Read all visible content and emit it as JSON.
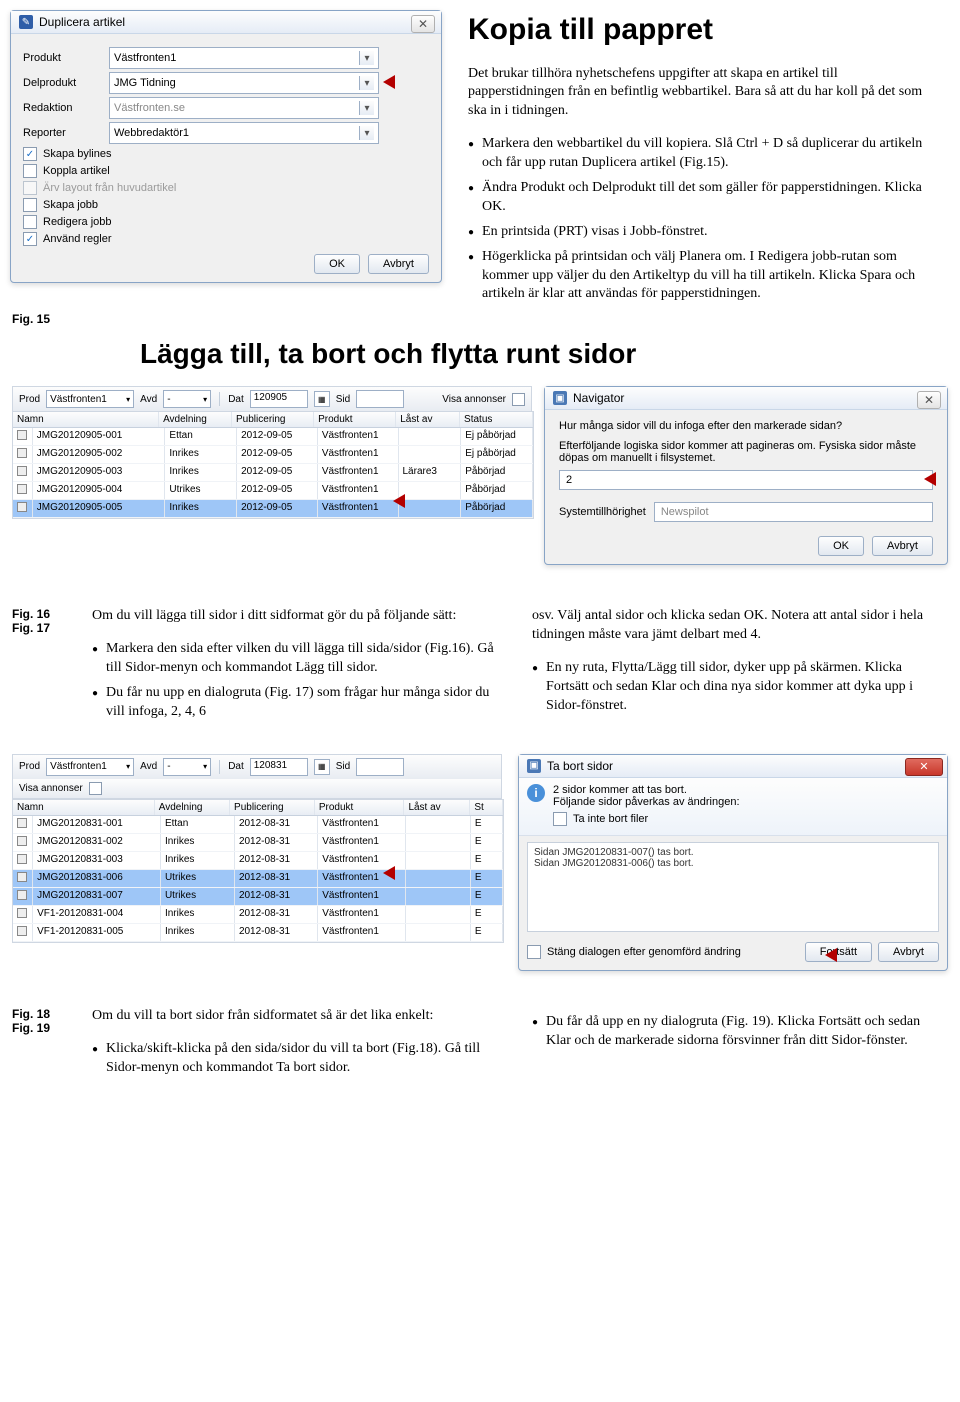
{
  "colors": {
    "highlight": "#9ec6f7",
    "marker": "#b30000"
  },
  "section1": {
    "dialog": {
      "title": "Duplicera artikel",
      "fields": {
        "produkt_label": "Produkt",
        "produkt_value": "Västfronten1",
        "delprodukt_label": "Delprodukt",
        "delprodukt_value": "JMG Tidning",
        "redaktion_label": "Redaktion",
        "redaktion_value": "Västfronten.se",
        "reporter_label": "Reporter",
        "reporter_value": "Webbredaktör1"
      },
      "checks": [
        {
          "label": "Skapa bylines",
          "checked": true,
          "enabled": true
        },
        {
          "label": "Koppla artikel",
          "checked": false,
          "enabled": true
        },
        {
          "label": "Ärv layout från huvudartikel",
          "checked": false,
          "enabled": false
        },
        {
          "label": "Skapa jobb",
          "checked": false,
          "enabled": true
        },
        {
          "label": "Redigera jobb",
          "checked": false,
          "enabled": true
        },
        {
          "label": "Använd regler",
          "checked": true,
          "enabled": true
        }
      ],
      "ok": "OK",
      "cancel": "Avbryt"
    },
    "article": {
      "title": "Kopia till pappret",
      "intro": "Det brukar tillhöra nyhetschefens uppgifter att skapa en artikel till papperstidningen från en befintlig webbartikel. Bara så att du har koll på det som ska in i tidningen.",
      "b1": "Markera den webbartikel du vill kopiera. Slå Ctrl + D så duplicerar du artikeln och får upp rutan Duplicera artikel (Fig.15).",
      "b2": "Ändra Produkt och Delprodukt till det som gäller för papperstidningen. Klicka OK.",
      "b3": "En printsida (PRT) visas i Jobb-fönstret.",
      "b4": "Högerklicka på printsidan och välj Planera om. I Redigera jobb-rutan som kommer upp väljer du den Artikeltyp du vill ha till artikeln. Klicka Spara och artikeln är klar att användas för papperstidningen."
    },
    "figlabel": "Fig. 15"
  },
  "section2": {
    "heading": "Lägga till, ta bort och flytta runt sidor",
    "topbar": {
      "prod_label": "Prod",
      "prod_value": "Västfronten1",
      "avd_label": "Avd",
      "dat_label": "Dat",
      "dat_value": "120905",
      "sid_label": "Sid",
      "visa_label": "Visa annonser"
    },
    "table": {
      "cols": [
        "Namn",
        "Avdelning",
        "Publicering",
        "Produkt",
        "Låst av",
        "Status"
      ],
      "widths": [
        150,
        70,
        80,
        80,
        60,
        70
      ],
      "rows": [
        [
          "JMG20120905-001",
          "Ettan",
          "2012-09-05",
          "Västfronten1",
          "",
          "Ej påbörjad"
        ],
        [
          "JMG20120905-002",
          "Inrikes",
          "2012-09-05",
          "Västfronten1",
          "",
          "Ej påbörjad"
        ],
        [
          "JMG20120905-003",
          "Inrikes",
          "2012-09-05",
          "Västfronten1",
          "Lärare3",
          "Påbörjad"
        ],
        [
          "JMG20120905-004",
          "Utrikes",
          "2012-09-05",
          "Västfronten1",
          "",
          "Påbörjad"
        ],
        [
          "JMG20120905-005",
          "Inrikes",
          "2012-09-05",
          "Västfronten1",
          "",
          "Påbörjad"
        ]
      ],
      "selected_row": 4
    },
    "navdialog": {
      "title": "Navigator",
      "q": "Hur många sidor vill du infoga efter den markerade sidan?",
      "note": "Efterföljande logiska sidor kommer att pagineras om. Fysiska sidor måste döpas om manuellt i filsystemet.",
      "value": "2",
      "sys_label": "Systemtillhörighet",
      "sys_value": "Newspilot",
      "ok": "OK",
      "cancel": "Avbryt"
    },
    "fig16": "Fig. 16",
    "fig17": "Fig. 17",
    "text_l_intro": "Om du vill lägga till sidor i ditt sidformat gör du på följande sätt:",
    "text_l_b1": "Markera den sida efter vilken du vill lägga till sida/sidor (Fig.16). Gå till Sidor-menyn och kommandot Lägg till sidor.",
    "text_l_b2": "Du får nu upp en dialogruta (Fig. 17) som frågar hur många sidor du vill infoga, 2, 4, 6",
    "text_r_p1": "osv. Välj antal sidor och klicka sedan OK. Notera att antal sidor i hela tidningen måste vara jämt delbart med 4.",
    "text_r_b1": "En ny ruta, Flytta/Lägg till sidor, dyker upp på skärmen. Klicka Fortsätt och sedan Klar och dina nya sidor kommer att dyka upp i Sidor-fönstret."
  },
  "section3": {
    "topbar": {
      "prod_label": "Prod",
      "prod_value": "Västfronten1",
      "avd_label": "Avd",
      "dat_label": "Dat",
      "dat_value": "120831",
      "sid_label": "Sid",
      "visa_label": "Visa annonser"
    },
    "table": {
      "cols": [
        "Namn",
        "Avdelning",
        "Publicering",
        "Produkt",
        "Låst av",
        "St"
      ],
      "widths": [
        140,
        70,
        80,
        85,
        60,
        25
      ],
      "rows": [
        [
          "JMG20120831-001",
          "Ettan",
          "2012-08-31",
          "Västfronten1",
          "",
          "E"
        ],
        [
          "JMG20120831-002",
          "Inrikes",
          "2012-08-31",
          "Västfronten1",
          "",
          "E"
        ],
        [
          "JMG20120831-003",
          "Inrikes",
          "2012-08-31",
          "Västfronten1",
          "",
          "E"
        ],
        [
          "JMG20120831-006",
          "Utrikes",
          "2012-08-31",
          "Västfronten1",
          "",
          "E"
        ],
        [
          "JMG20120831-007",
          "Utrikes",
          "2012-08-31",
          "Västfronten1",
          "",
          "E"
        ],
        [
          "VF1-20120831-004",
          "Inrikes",
          "2012-08-31",
          "Västfronten1",
          "",
          "E"
        ],
        [
          "VF1-20120831-005",
          "Inrikes",
          "2012-08-31",
          "Västfronten1",
          "",
          "E"
        ]
      ],
      "selected_rows": [
        3,
        4
      ]
    },
    "deldialog": {
      "title": "Ta bort sidor",
      "info": "2 sidor kommer att tas bort.\nFöljande sidor påverkas av ändringen:",
      "check": "Ta inte bort filer",
      "listlines": [
        "Sidan JMG20120831-007() tas bort.",
        "Sidan JMG20120831-006() tas bort."
      ],
      "close_after": "Stäng dialogen efter genomförd ändring",
      "cont": "Fortsätt",
      "cancel": "Avbryt"
    },
    "fig18": "Fig. 18",
    "fig19": "Fig. 19",
    "text_l_intro": "Om du vill ta bort sidor från sidformatet så är det lika enkelt:",
    "text_l_b1": "Klicka/skift-klicka på den sida/sidor du vill ta bort (Fig.18). Gå till Sidor-menyn och kommandot Ta bort sidor.",
    "text_r_b1": "Du får då upp en ny dialogruta (Fig. 19). Klicka Fortsätt och sedan Klar och de markerade sidorna försvinner från ditt Sidor-fönster."
  }
}
